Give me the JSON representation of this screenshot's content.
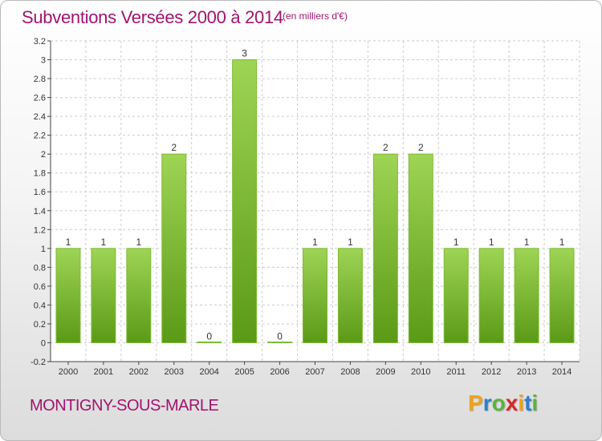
{
  "title": "Subventions Versées 2000 à 2014",
  "subtitle": "(en milliers d'€)",
  "commune": "MONTIGNY-SOUS-MARLE",
  "logo": {
    "letters": [
      "P",
      "r",
      "o",
      "x",
      "i",
      "t",
      "i"
    ],
    "colors": [
      "#f0a21b",
      "#2e7fc9",
      "#59b53a",
      "#d9262a",
      "#f0a21b",
      "#2e7fc9",
      "#59b53a"
    ]
  },
  "colors": {
    "bar_top": "#9fd455",
    "bar_bottom": "#5a9a16",
    "bar_stroke": "#7cbb33",
    "title": "#a0146e"
  },
  "chart_data": {
    "type": "bar",
    "categories": [
      "2000",
      "2001",
      "2002",
      "2003",
      "2004",
      "2005",
      "2006",
      "2007",
      "2008",
      "2009",
      "2010",
      "2011",
      "2012",
      "2013",
      "2014"
    ],
    "values": [
      1,
      1,
      1,
      2,
      0,
      3,
      0,
      1,
      1,
      2,
      2,
      1,
      1,
      1,
      1
    ],
    "labels": [
      "1",
      "1",
      "1",
      "2",
      "0",
      "3",
      "0",
      "1",
      "1",
      "2",
      "2",
      "1",
      "1",
      "1",
      "1"
    ],
    "yticks": [
      "-0.2",
      "0",
      "0.2",
      "0.4",
      "0.6",
      "0.8",
      "1",
      "1.2",
      "1.4",
      "1.6",
      "1.8",
      "2",
      "2.2",
      "2.4",
      "2.6",
      "2.8",
      "3",
      "3.2"
    ],
    "ylim": [
      -0.2,
      3.2
    ],
    "grid": true,
    "xlabel": "",
    "ylabel": ""
  }
}
